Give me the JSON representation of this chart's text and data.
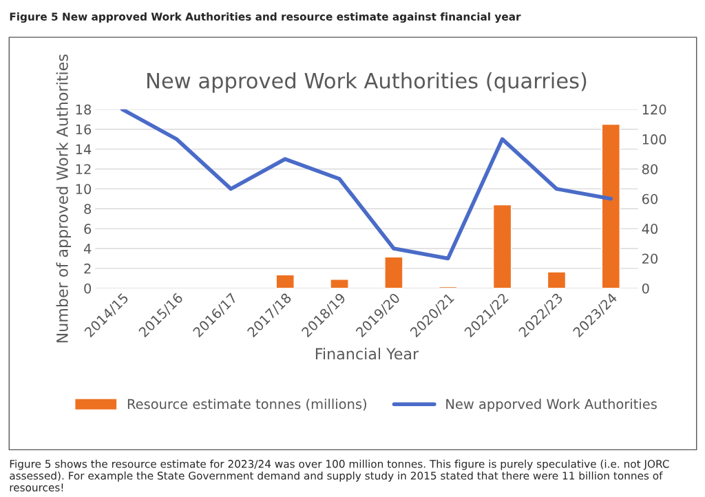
{
  "chart_data": {
    "type": "line",
    "title": "New approved Work Authorities (quarries)",
    "xlabel": "Financial Year",
    "ylabel": "Number of approved Work Authorities",
    "categories": [
      "2014/15",
      "2015/16",
      "2016/17",
      "2017/18",
      "2018/19",
      "2019/20",
      "2020/21",
      "2021/22",
      "2022/23",
      "2023/24"
    ],
    "series": [
      {
        "name": "Resource estimate tonnes (millions)",
        "type": "bar",
        "axis": "y2",
        "color": "#ed7021",
        "values": [
          null,
          null,
          null,
          9,
          6,
          21,
          1,
          56,
          11,
          110
        ]
      },
      {
        "name": "New apporved Work Authorities",
        "color": "#4a6bc8",
        "values": [
          18,
          15,
          10,
          13,
          11,
          4,
          3,
          15,
          10,
          9
        ]
      }
    ],
    "ylim": [
      0,
      18
    ],
    "yticks": [
      0,
      2,
      4,
      6,
      8,
      10,
      12,
      14,
      16,
      18
    ],
    "y2lim": [
      0,
      120
    ],
    "y2ticks": [
      0,
      20,
      40,
      60,
      80,
      100,
      120
    ],
    "grid": "y",
    "legend": "bottom",
    "line_style": "solid",
    "marker": "none",
    "annotations": [
      "Figure 5 New approved Work Authorities and resource estimate against financial year",
      "Figure 5 shows the resource estimate for 2023/24 was over 100 million tonnes. This figure is purely speculative (i.e. not JORC assessed). For example the State Government demand and supply study in 2015 stated that there were 11 billion tonnes of resources!"
    ]
  }
}
